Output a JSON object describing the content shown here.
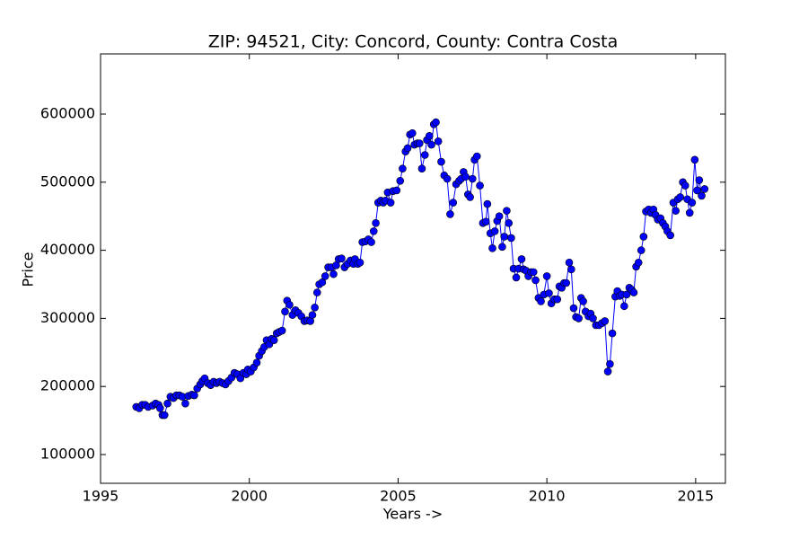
{
  "chart_data": {
    "type": "line",
    "title": "ZIP: 94521, City: Concord, County: Contra Costa",
    "x_label": "Years ->",
    "y_label": "Price",
    "series": [
      {
        "name": "Price",
        "color": "#0000ff",
        "x": [
          1996.2,
          1996.3,
          1996.4,
          1996.5,
          1996.6,
          1996.75,
          1996.85,
          1996.95,
          1997.0,
          1997.08,
          1997.15,
          1997.25,
          1997.35,
          1997.45,
          1997.55,
          1997.65,
          1997.75,
          1997.85,
          1997.95,
          1998.07,
          1998.15,
          1998.25,
          1998.35,
          1998.42,
          1998.5,
          1998.6,
          1998.7,
          1998.8,
          1998.9,
          1999.0,
          1999.1,
          1999.2,
          1999.3,
          1999.4,
          1999.5,
          1999.6,
          1999.7,
          1999.8,
          1999.9,
          1999.95,
          2000.05,
          2000.15,
          2000.25,
          2000.33,
          2000.42,
          2000.5,
          2000.58,
          2000.67,
          2000.75,
          2000.83,
          2000.92,
          2001.0,
          2001.1,
          2001.2,
          2001.27,
          2001.35,
          2001.45,
          2001.55,
          2001.65,
          2001.75,
          2001.85,
          2001.95,
          2002.05,
          2002.12,
          2002.2,
          2002.28,
          2002.35,
          2002.45,
          2002.55,
          2002.65,
          2002.75,
          2002.83,
          2002.92,
          2003.0,
          2003.1,
          2003.2,
          2003.3,
          2003.4,
          2003.5,
          2003.55,
          2003.65,
          2003.72,
          2003.8,
          2003.9,
          2004.0,
          2004.1,
          2004.18,
          2004.25,
          2004.33,
          2004.42,
          2004.5,
          2004.58,
          2004.65,
          2004.75,
          2004.83,
          2004.95,
          2005.07,
          2005.15,
          2005.25,
          2005.32,
          2005.4,
          2005.48,
          2005.55,
          2005.65,
          2005.72,
          2005.8,
          2005.9,
          2005.97,
          2006.05,
          2006.12,
          2006.2,
          2006.27,
          2006.35,
          2006.45,
          2006.55,
          2006.65,
          2006.75,
          2006.85,
          2006.95,
          2007.05,
          2007.12,
          2007.2,
          2007.27,
          2007.35,
          2007.42,
          2007.5,
          2007.57,
          2007.65,
          2007.75,
          2007.85,
          2007.95,
          2008.0,
          2008.1,
          2008.17,
          2008.25,
          2008.33,
          2008.4,
          2008.5,
          2008.57,
          2008.65,
          2008.72,
          2008.8,
          2008.88,
          2008.97,
          2009.05,
          2009.15,
          2009.22,
          2009.3,
          2009.38,
          2009.47,
          2009.55,
          2009.62,
          2009.72,
          2009.8,
          2009.9,
          2010.0,
          2010.07,
          2010.15,
          2010.25,
          2010.35,
          2010.42,
          2010.5,
          2010.58,
          2010.65,
          2010.75,
          2010.82,
          2010.9,
          2010.98,
          2011.07,
          2011.15,
          2011.22,
          2011.3,
          2011.4,
          2011.47,
          2011.55,
          2011.65,
          2011.75,
          2011.85,
          2011.95,
          2012.05,
          2012.12,
          2012.2,
          2012.3,
          2012.37,
          2012.45,
          2012.52,
          2012.6,
          2012.68,
          2012.77,
          2012.85,
          2012.92,
          2013.0,
          2013.08,
          2013.17,
          2013.25,
          2013.33,
          2013.42,
          2013.5,
          2013.58,
          2013.65,
          2013.73,
          2013.82,
          2013.9,
          2013.98,
          2014.05,
          2014.15,
          2014.25,
          2014.33,
          2014.4,
          2014.48,
          2014.57,
          2014.65,
          2014.72,
          2014.8,
          2014.88,
          2014.97,
          2015.05,
          2015.12,
          2015.2,
          2015.3
        ],
        "values": [
          170000,
          168000,
          173000,
          173000,
          170000,
          172000,
          175000,
          173000,
          168000,
          158000,
          158000,
          175000,
          185000,
          183000,
          187000,
          187000,
          185000,
          175000,
          186000,
          188000,
          187000,
          197000,
          203000,
          208000,
          212000,
          205000,
          202000,
          207000,
          205000,
          207000,
          205000,
          203000,
          208000,
          213000,
          220000,
          218000,
          212000,
          220000,
          218000,
          225000,
          222000,
          228000,
          235000,
          245000,
          252000,
          258000,
          268000,
          262000,
          270000,
          268000,
          278000,
          280000,
          282000,
          310000,
          326000,
          320000,
          305000,
          312000,
          308000,
          303000,
          296000,
          297000,
          296000,
          305000,
          316000,
          338000,
          350000,
          353000,
          362000,
          375000,
          375000,
          365000,
          378000,
          387000,
          388000,
          375000,
          380000,
          385000,
          380000,
          387000,
          380000,
          382000,
          412000,
          413000,
          416000,
          412000,
          428000,
          440000,
          470000,
          473000,
          470000,
          473000,
          485000,
          470000,
          487000,
          488000,
          502000,
          520000,
          545000,
          550000,
          570000,
          572000,
          555000,
          557000,
          557000,
          520000,
          540000,
          562000,
          568000,
          555000,
          585000,
          588000,
          560000,
          530000,
          510000,
          505000,
          453000,
          470000,
          497000,
          502000,
          505000,
          515000,
          508000,
          482000,
          478000,
          505000,
          533000,
          538000,
          495000,
          440000,
          442000,
          468000,
          425000,
          403000,
          428000,
          443000,
          450000,
          405000,
          420000,
          458000,
          440000,
          418000,
          373000,
          360000,
          373000,
          387000,
          372000,
          370000,
          362000,
          368000,
          368000,
          356000,
          330000,
          325000,
          335000,
          362000,
          337000,
          322000,
          328000,
          328000,
          347000,
          345000,
          352000,
          352000,
          382000,
          372000,
          315000,
          302000,
          300000,
          330000,
          325000,
          310000,
          303000,
          307000,
          300000,
          290000,
          290000,
          293000,
          296000,
          222000,
          233000,
          278000,
          332000,
          340000,
          333000,
          335000,
          318000,
          335000,
          345000,
          342000,
          338000,
          376000,
          382000,
          400000,
          420000,
          457000,
          460000,
          455000,
          460000,
          452000,
          445000,
          447000,
          440000,
          435000,
          428000,
          422000,
          470000,
          458000,
          475000,
          478000,
          500000,
          495000,
          475000,
          455000,
          470000,
          533000,
          488000,
          503000,
          480000,
          490000
        ]
      }
    ],
    "xlim": [
      1995,
      2016
    ],
    "xticks": [
      1995,
      2000,
      2005,
      2010,
      2015
    ],
    "ylim": [
      57800,
      688400
    ],
    "yticks": [
      100000,
      200000,
      300000,
      400000,
      500000,
      600000
    ],
    "grid": false
  }
}
